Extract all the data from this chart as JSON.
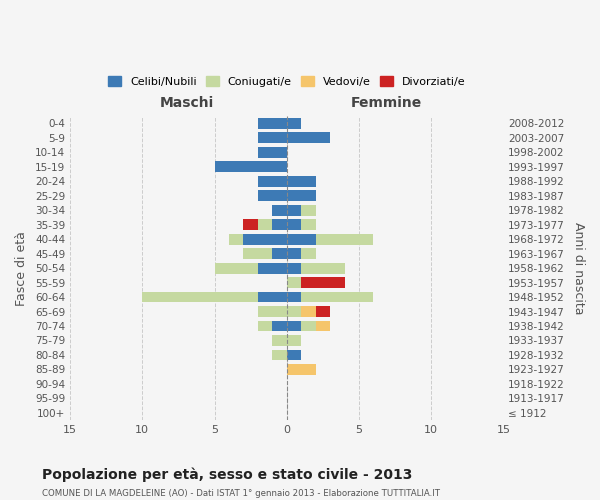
{
  "age_groups": [
    "100+",
    "95-99",
    "90-94",
    "85-89",
    "80-84",
    "75-79",
    "70-74",
    "65-69",
    "60-64",
    "55-59",
    "50-54",
    "45-49",
    "40-44",
    "35-39",
    "30-34",
    "25-29",
    "20-24",
    "15-19",
    "10-14",
    "5-9",
    "0-4"
  ],
  "birth_years": [
    "≤ 1912",
    "1913-1917",
    "1918-1922",
    "1923-1927",
    "1928-1932",
    "1933-1937",
    "1938-1942",
    "1943-1947",
    "1948-1952",
    "1953-1957",
    "1958-1962",
    "1963-1967",
    "1968-1972",
    "1973-1977",
    "1978-1982",
    "1983-1987",
    "1988-1992",
    "1993-1997",
    "1998-2002",
    "2003-2007",
    "2008-2012"
  ],
  "males": {
    "celibi": [
      0,
      0,
      0,
      0,
      0,
      0,
      1,
      0,
      2,
      0,
      2,
      1,
      3,
      1,
      1,
      2,
      2,
      5,
      2,
      2,
      2
    ],
    "coniugati": [
      0,
      0,
      0,
      0,
      1,
      1,
      1,
      2,
      8,
      0,
      3,
      2,
      1,
      1,
      0,
      0,
      0,
      0,
      0,
      0,
      0
    ],
    "vedovi": [
      0,
      0,
      0,
      0,
      0,
      0,
      0,
      0,
      0,
      0,
      0,
      0,
      0,
      0,
      0,
      0,
      0,
      0,
      0,
      0,
      0
    ],
    "divorziati": [
      0,
      0,
      0,
      0,
      0,
      0,
      0,
      0,
      0,
      0,
      0,
      0,
      0,
      1,
      0,
      0,
      0,
      0,
      0,
      0,
      0
    ]
  },
  "females": {
    "nubili": [
      0,
      0,
      0,
      0,
      1,
      0,
      1,
      0,
      1,
      0,
      1,
      1,
      2,
      1,
      1,
      2,
      2,
      0,
      0,
      3,
      1
    ],
    "coniugate": [
      0,
      0,
      0,
      0,
      0,
      1,
      1,
      1,
      5,
      1,
      3,
      1,
      4,
      1,
      1,
      0,
      0,
      0,
      0,
      0,
      0
    ],
    "vedove": [
      0,
      0,
      0,
      2,
      0,
      0,
      1,
      1,
      0,
      0,
      0,
      0,
      0,
      0,
      0,
      0,
      0,
      0,
      0,
      0,
      0
    ],
    "divorziate": [
      0,
      0,
      0,
      0,
      0,
      0,
      0,
      1,
      0,
      3,
      0,
      0,
      0,
      0,
      0,
      0,
      0,
      0,
      0,
      0,
      0
    ]
  },
  "colors": {
    "celibi": "#3d7ab5",
    "coniugati": "#c5d9a0",
    "vedovi": "#f5c56b",
    "divorziati": "#cc2222"
  },
  "xlim": 15,
  "title": "Popolazione per età, sesso e stato civile - 2013",
  "subtitle": "COMUNE DI LA MAGDELEINE (AO) - Dati ISTAT 1° gennaio 2013 - Elaborazione TUTTITALIA.IT",
  "ylabel_left": "Fasce di età",
  "ylabel_right": "Anni di nascita",
  "legend_labels": [
    "Celibi/Nubili",
    "Coniugati/e",
    "Vedovi/e",
    "Divorziati/e"
  ],
  "background_color": "#f5f5f5",
  "maschi_label": "Maschi",
  "femmine_label": "Femmine"
}
